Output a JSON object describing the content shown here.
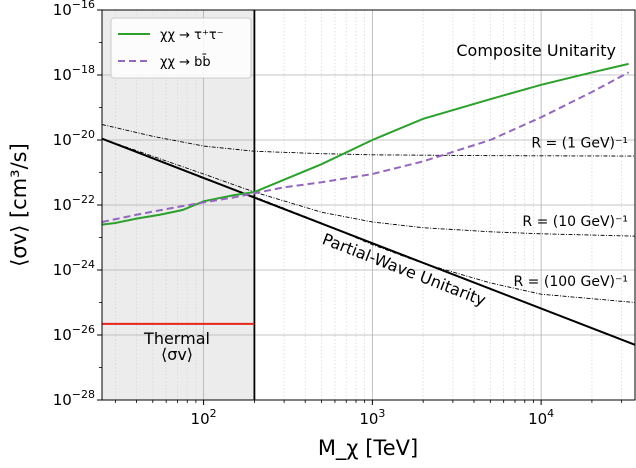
{
  "chart_data": {
    "type": "line",
    "xlabel": "M_χ [TeV]",
    "ylabel": "⟨σv⟩ [cm³/s]",
    "xscale": "log",
    "yscale": "log",
    "xlim": [
      25,
      36000
    ],
    "ylim": [
      1e-28,
      1e-16
    ],
    "grid": true,
    "legend_position": "top-left",
    "x_ticks": [
      {
        "value": 100,
        "base": "10",
        "exp": "2"
      },
      {
        "value": 1000,
        "base": "10",
        "exp": "3"
      },
      {
        "value": 10000,
        "base": "10",
        "exp": "4"
      }
    ],
    "y_ticks": [
      {
        "value": 1e-16,
        "base": "10",
        "exp": "−16"
      },
      {
        "value": 1e-18,
        "base": "10",
        "exp": "−18"
      },
      {
        "value": 1e-20,
        "base": "10",
        "exp": "−20"
      },
      {
        "value": 1e-22,
        "base": "10",
        "exp": "−22"
      },
      {
        "value": 1e-24,
        "base": "10",
        "exp": "−24"
      },
      {
        "value": 1e-26,
        "base": "10",
        "exp": "−26"
      },
      {
        "value": 1e-28,
        "base": "10",
        "exp": "−28"
      }
    ],
    "shaded_region": {
      "x": [
        25,
        200
      ],
      "color": "#ececec"
    },
    "vertical_line": {
      "x": 200,
      "color": "#000000"
    },
    "series": [
      {
        "name": "χχ → τ⁺τ⁻",
        "color": "#2ca02c",
        "style": "solid",
        "x": [
          25,
          30,
          40,
          55,
          75,
          100,
          150,
          200,
          300,
          500,
          1000,
          2000,
          5000,
          10000,
          20000,
          33000
        ],
        "y": [
          2.5e-23,
          2.8e-23,
          3.8e-23,
          5e-23,
          7e-23,
          1.3e-22,
          2e-22,
          2.5e-22,
          6e-22,
          1.8e-21,
          1e-20,
          4.5e-20,
          1.8e-19,
          5e-19,
          1.2e-18,
          2.2e-18
        ]
      },
      {
        "name": "χχ → bb̄",
        "color": "#9467bd",
        "style": "dashed",
        "x": [
          25,
          40,
          60,
          100,
          150,
          200,
          300,
          500,
          1000,
          2000,
          5000,
          10000,
          20000,
          33000
        ],
        "y": [
          3e-23,
          5e-23,
          7.5e-23,
          1.2e-22,
          1.7e-22,
          2.3e-22,
          3.5e-22,
          5e-22,
          9e-22,
          2.2e-21,
          1e-20,
          5e-20,
          3e-19,
          1.2e-18
        ]
      }
    ],
    "unitarity": {
      "label": "Partial-Wave Unitarity",
      "x": [
        25,
        36000
      ],
      "y": [
        1.1e-20,
        5e-27
      ],
      "color": "#000000"
    },
    "composite_curves": [
      {
        "label": "R = (1 GeV)⁻¹",
        "x": [
          25,
          50,
          100,
          200,
          500,
          1000,
          5000,
          36000
        ],
        "y": [
          3e-20,
          1.3e-20,
          6.5e-21,
          4.5e-21,
          3.8e-21,
          3.5e-21,
          3.3e-21,
          3.2e-21
        ]
      },
      {
        "label": "R = (10 GeV)⁻¹",
        "x": [
          25,
          100,
          200,
          500,
          1000,
          2000,
          5000,
          10000,
          36000
        ],
        "y": [
          1.1e-20,
          9e-22,
          2.5e-22,
          6e-23,
          3e-23,
          2e-23,
          1.5e-23,
          1.3e-23,
          1.1e-23
        ]
      },
      {
        "label": "R = (100 GeV)⁻¹",
        "x": [
          25,
          100,
          200,
          500,
          1000,
          2000,
          5000,
          10000,
          36000
        ],
        "y": [
          1.1e-20,
          6.5e-22,
          1.8e-22,
          2.8e-23,
          6e-24,
          1.6e-24,
          4e-25,
          1.8e-25,
          1e-25
        ]
      }
    ],
    "thermal": {
      "label_line1": "Thermal",
      "label_line2": "⟨σv⟩",
      "y": 2.2e-26,
      "x": [
        25,
        200
      ],
      "color": "#e8251b"
    },
    "annotations": {
      "composite_unitarity": "Composite Unitarity"
    }
  }
}
